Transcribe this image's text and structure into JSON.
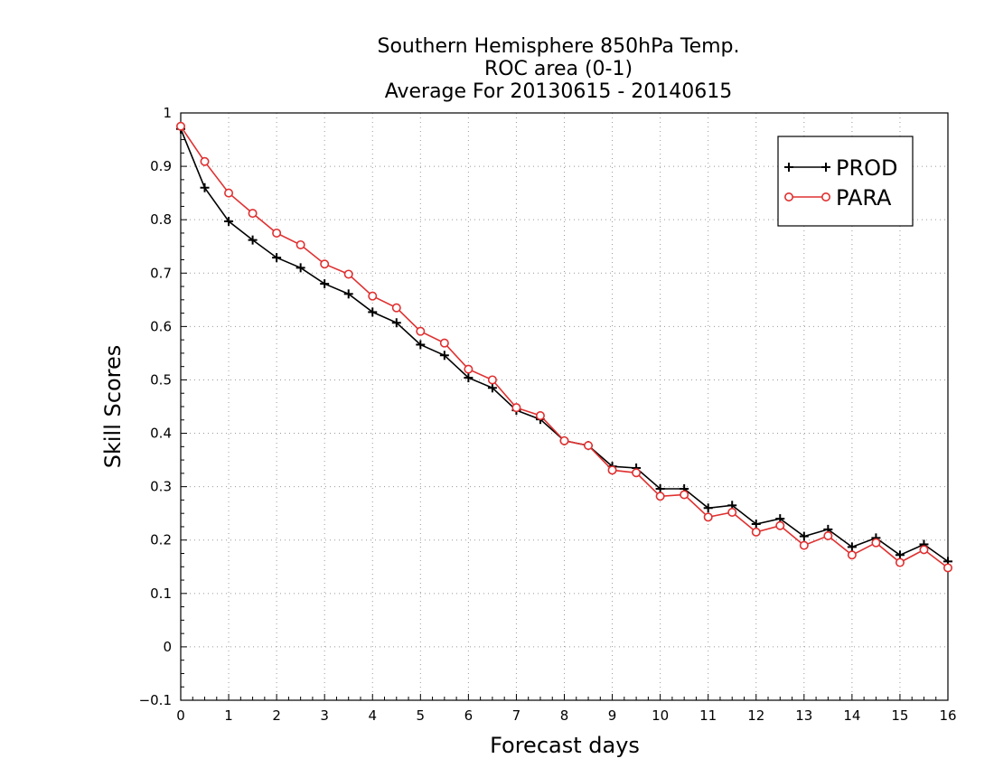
{
  "chart_data": {
    "type": "line",
    "title_lines": [
      "Southern Hemisphere 850hPa Temp.",
      "ROC area (0-1)",
      "Average For 20130615 - 20140615"
    ],
    "xlabel": "Forecast days",
    "ylabel": "Skill Scores",
    "xlim": [
      0,
      16
    ],
    "ylim": [
      -0.1,
      1
    ],
    "xticks": [
      0,
      1,
      2,
      3,
      4,
      5,
      6,
      7,
      8,
      9,
      10,
      11,
      12,
      13,
      14,
      15,
      16
    ],
    "yticks": [
      -0.1,
      0,
      0.1,
      0.2,
      0.3,
      0.4,
      0.5,
      0.6,
      0.7,
      0.8,
      0.9,
      1
    ],
    "ytick_labels": [
      "−0.1",
      "0",
      "0.1",
      "0.2",
      "0.3",
      "0.4",
      "0.5",
      "0.6",
      "0.7",
      "0.8",
      "0.9",
      "1"
    ],
    "grid": true,
    "legend_position": "top-right",
    "x": [
      0,
      0.5,
      1,
      1.5,
      2,
      2.5,
      3,
      3.5,
      4,
      4.5,
      5,
      5.5,
      6,
      6.5,
      7,
      7.5,
      8,
      8.5,
      9,
      9.5,
      10,
      10.5,
      11,
      11.5,
      12,
      12.5,
      13,
      13.5,
      14,
      14.5,
      15,
      15.5,
      16
    ],
    "series": [
      {
        "name": "PROD",
        "color": "#000000",
        "marker": "plus",
        "values": [
          0.97,
          0.86,
          0.797,
          0.762,
          0.729,
          0.71,
          0.68,
          0.661,
          0.627,
          0.607,
          0.566,
          0.546,
          0.504,
          0.485,
          0.443,
          0.426,
          0.386,
          0.377,
          0.338,
          0.335,
          0.296,
          0.296,
          0.26,
          0.265,
          0.23,
          0.24,
          0.207,
          0.22,
          0.187,
          0.204,
          0.172,
          0.192,
          0.16
        ]
      },
      {
        "name": "PARA",
        "color": "#e03030",
        "marker": "circle",
        "values": [
          0.975,
          0.909,
          0.85,
          0.812,
          0.775,
          0.753,
          0.717,
          0.698,
          0.657,
          0.635,
          0.591,
          0.569,
          0.52,
          0.5,
          0.448,
          0.433,
          0.386,
          0.377,
          0.331,
          0.326,
          0.282,
          0.285,
          0.243,
          0.252,
          0.215,
          0.227,
          0.19,
          0.208,
          0.172,
          0.195,
          0.158,
          0.182,
          0.148
        ]
      }
    ]
  }
}
